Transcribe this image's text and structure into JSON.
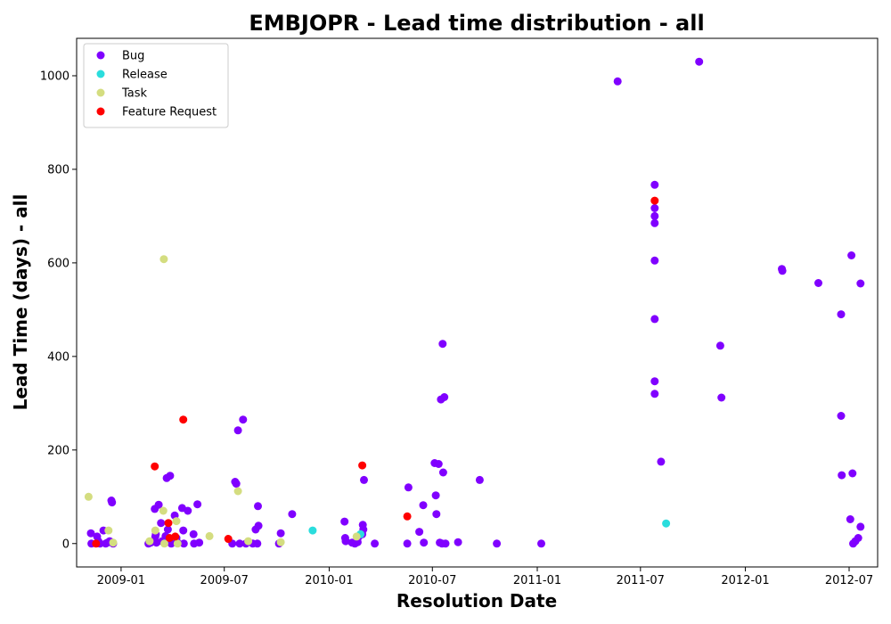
{
  "chart_data": {
    "type": "scatter",
    "title": "EMBJOPR - Lead time distribution - all",
    "xlabel": "Resolution Date",
    "ylabel": "Lead Time (days) - all",
    "x_axis_type": "date",
    "xlim": [
      "2008-10-15",
      "2012-08-20"
    ],
    "ylim": [
      -50,
      1080
    ],
    "x_ticks": [
      "2009-01",
      "2009-07",
      "2010-01",
      "2010-07",
      "2011-01",
      "2011-07",
      "2012-01",
      "2012-07"
    ],
    "y_ticks": [
      0,
      200,
      400,
      600,
      800,
      1000
    ],
    "legend_position": "upper-left",
    "grid": false,
    "series": [
      {
        "name": "Bug",
        "color": "#8000ff",
        "points": [
          [
            "2008-11-09",
            22
          ],
          [
            "2008-11-10",
            0
          ],
          [
            "2008-11-20",
            15
          ],
          [
            "2008-11-22",
            5
          ],
          [
            "2008-11-25",
            0
          ],
          [
            "2008-12-01",
            28
          ],
          [
            "2008-12-05",
            0
          ],
          [
            "2008-12-08",
            2
          ],
          [
            "2008-12-12",
            5
          ],
          [
            "2008-12-15",
            92
          ],
          [
            "2008-12-16",
            88
          ],
          [
            "2008-12-18",
            0
          ],
          [
            "2009-02-18",
            0
          ],
          [
            "2009-02-22",
            2
          ],
          [
            "2009-03-01",
            74
          ],
          [
            "2009-03-02",
            15
          ],
          [
            "2009-03-03",
            20
          ],
          [
            "2009-03-04",
            2
          ],
          [
            "2009-03-08",
            83
          ],
          [
            "2009-03-12",
            44
          ],
          [
            "2009-03-14",
            5
          ],
          [
            "2009-03-18",
            2
          ],
          [
            "2009-03-20",
            16
          ],
          [
            "2009-03-22",
            140
          ],
          [
            "2009-03-24",
            30
          ],
          [
            "2009-03-28",
            145
          ],
          [
            "2009-03-30",
            0
          ],
          [
            "2009-04-05",
            60
          ],
          [
            "2009-04-08",
            12
          ],
          [
            "2009-04-10",
            2
          ],
          [
            "2009-04-18",
            76
          ],
          [
            "2009-04-20",
            28
          ],
          [
            "2009-04-21",
            0
          ],
          [
            "2009-04-28",
            70
          ],
          [
            "2009-05-08",
            20
          ],
          [
            "2009-05-09",
            0
          ],
          [
            "2009-05-15",
            84
          ],
          [
            "2009-05-18",
            2
          ],
          [
            "2009-07-20",
            132
          ],
          [
            "2009-07-22",
            128
          ],
          [
            "2009-07-25",
            242
          ],
          [
            "2009-07-15",
            0
          ],
          [
            "2009-07-28",
            0
          ],
          [
            "2009-08-03",
            265
          ],
          [
            "2009-08-08",
            0
          ],
          [
            "2009-08-20",
            0
          ],
          [
            "2009-08-25",
            30
          ],
          [
            "2009-08-28",
            0
          ],
          [
            "2009-08-29",
            80
          ],
          [
            "2009-08-30",
            38
          ],
          [
            "2009-10-05",
            0
          ],
          [
            "2009-10-08",
            22
          ],
          [
            "2009-10-28",
            63
          ],
          [
            "2010-01-28",
            47
          ],
          [
            "2010-01-29",
            12
          ],
          [
            "2010-01-30",
            5
          ],
          [
            "2010-02-10",
            2
          ],
          [
            "2010-02-15",
            0
          ],
          [
            "2010-02-20",
            3
          ],
          [
            "2010-02-22",
            15
          ],
          [
            "2010-02-28",
            20
          ],
          [
            "2010-03-01",
            40
          ],
          [
            "2010-03-02",
            30
          ],
          [
            "2010-03-03",
            136
          ],
          [
            "2010-03-22",
            0
          ],
          [
            "2010-05-18",
            0
          ],
          [
            "2010-05-20",
            120
          ],
          [
            "2010-06-08",
            25
          ],
          [
            "2010-06-15",
            82
          ],
          [
            "2010-06-16",
            2
          ],
          [
            "2010-07-05",
            172
          ],
          [
            "2010-07-07",
            103
          ],
          [
            "2010-07-08",
            63
          ],
          [
            "2010-07-12",
            170
          ],
          [
            "2010-07-14",
            2
          ],
          [
            "2010-07-16",
            308
          ],
          [
            "2010-07-18",
            0
          ],
          [
            "2010-07-19",
            427
          ],
          [
            "2010-07-20",
            152
          ],
          [
            "2010-07-22",
            313
          ],
          [
            "2010-07-24",
            0
          ],
          [
            "2010-08-15",
            3
          ],
          [
            "2010-09-22",
            136
          ],
          [
            "2010-10-22",
            0
          ],
          [
            "2011-01-08",
            0
          ],
          [
            "2011-05-22",
            988
          ],
          [
            "2011-07-26",
            767
          ],
          [
            "2011-07-26",
            717
          ],
          [
            "2011-07-26",
            700
          ],
          [
            "2011-07-26",
            685
          ],
          [
            "2011-07-26",
            605
          ],
          [
            "2011-07-26",
            480
          ],
          [
            "2011-07-26",
            347
          ],
          [
            "2011-07-26",
            320
          ],
          [
            "2011-08-06",
            175
          ],
          [
            "2011-10-12",
            1030
          ],
          [
            "2011-11-18",
            423
          ],
          [
            "2011-11-20",
            312
          ],
          [
            "2012-03-05",
            587
          ],
          [
            "2012-03-06",
            583
          ],
          [
            "2012-05-08",
            557
          ],
          [
            "2012-06-17",
            490
          ],
          [
            "2012-06-17",
            273
          ],
          [
            "2012-06-18",
            146
          ],
          [
            "2012-07-03",
            52
          ],
          [
            "2012-07-05",
            616
          ],
          [
            "2012-07-07",
            150
          ],
          [
            "2012-07-08",
            0
          ],
          [
            "2012-07-12",
            5
          ],
          [
            "2012-07-17",
            12
          ],
          [
            "2012-07-21",
            556
          ],
          [
            "2012-07-21",
            36
          ]
        ]
      },
      {
        "name": "Release",
        "color": "#2adddd",
        "points": [
          [
            "2009-12-03",
            28
          ],
          [
            "2010-02-25",
            20
          ],
          [
            "2011-08-15",
            43
          ]
        ]
      },
      {
        "name": "Task",
        "color": "#d4dd80",
        "points": [
          [
            "2008-11-05",
            100
          ],
          [
            "2008-12-10",
            28
          ],
          [
            "2008-12-18",
            2
          ],
          [
            "2009-02-20",
            5
          ],
          [
            "2009-03-02",
            28
          ],
          [
            "2009-03-16",
            70
          ],
          [
            "2009-03-17",
            608
          ],
          [
            "2009-03-18",
            0
          ],
          [
            "2009-04-08",
            48
          ],
          [
            "2009-04-10",
            0
          ],
          [
            "2009-06-05",
            16
          ],
          [
            "2009-07-25",
            112
          ],
          [
            "2009-08-12",
            5
          ],
          [
            "2009-10-08",
            3
          ],
          [
            "2010-02-18",
            15
          ]
        ]
      },
      {
        "name": "Feature Request",
        "color": "#ff0000",
        "points": [
          [
            "2008-11-18",
            0
          ],
          [
            "2009-03-01",
            165
          ],
          [
            "2009-03-25",
            44
          ],
          [
            "2009-03-27",
            12
          ],
          [
            "2009-04-06",
            15
          ],
          [
            "2009-04-20",
            265
          ],
          [
            "2009-07-08",
            10
          ],
          [
            "2010-02-28",
            167
          ],
          [
            "2010-05-18",
            58
          ],
          [
            "2011-07-26",
            733
          ]
        ]
      }
    ]
  }
}
